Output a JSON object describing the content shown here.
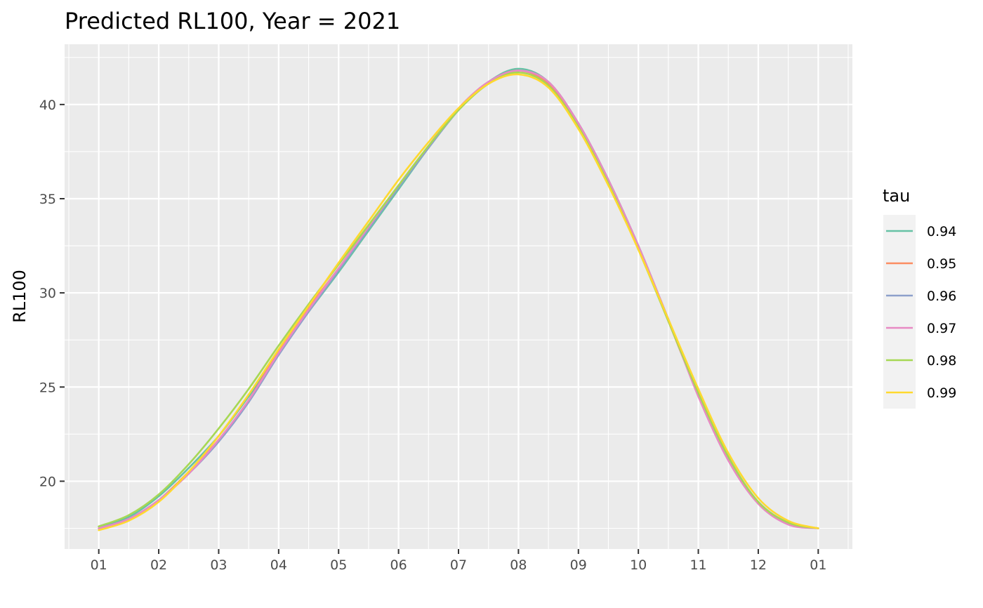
{
  "chart_data": {
    "type": "line",
    "title": "Predicted RL100, Year = 2021",
    "xlabel": "",
    "ylabel": "RL100",
    "x_tick_labels": [
      "01",
      "02",
      "03",
      "04",
      "05",
      "06",
      "07",
      "08",
      "09",
      "10",
      "11",
      "12",
      "01"
    ],
    "y_tick_labels": [
      "20",
      "25",
      "30",
      "35",
      "40"
    ],
    "y_ticks": [
      20,
      25,
      30,
      35,
      40
    ],
    "x_unit": "month",
    "xlim": [
      0.43,
      13.57
    ],
    "ylim": [
      16.4,
      43.2
    ],
    "grid": true,
    "legend_position": "right",
    "legend_title": "tau",
    "x": [
      1,
      1.5,
      2,
      2.5,
      3,
      3.5,
      4,
      4.5,
      5,
      5.5,
      6,
      6.5,
      7,
      7.5,
      8,
      8.5,
      9,
      9.5,
      10,
      10.5,
      11,
      11.5,
      12,
      12.5,
      13
    ],
    "series": [
      {
        "name": "0.94",
        "color": "#66c2a5",
        "values": [
          17.6,
          18.1,
          19.2,
          20.7,
          22.4,
          24.5,
          26.8,
          29.0,
          31.1,
          33.3,
          35.5,
          37.7,
          39.7,
          41.2,
          41.9,
          41.2,
          39.0,
          36.0,
          32.5,
          28.6,
          24.7,
          21.3,
          18.9,
          17.8,
          17.5
        ]
      },
      {
        "name": "0.95",
        "color": "#fc8d62",
        "values": [
          17.5,
          18.0,
          19.0,
          20.5,
          22.2,
          24.3,
          26.9,
          29.2,
          31.3,
          33.5,
          35.7,
          37.8,
          39.8,
          41.2,
          41.8,
          41.1,
          38.9,
          35.9,
          32.4,
          28.5,
          24.6,
          21.2,
          18.9,
          17.8,
          17.5
        ]
      },
      {
        "name": "0.96",
        "color": "#8da0cb",
        "values": [
          17.5,
          18.0,
          19.0,
          20.4,
          22.1,
          24.2,
          26.7,
          29.0,
          31.2,
          33.4,
          35.6,
          37.7,
          39.7,
          41.2,
          41.8,
          41.2,
          39.0,
          36.0,
          32.5,
          28.6,
          24.6,
          21.2,
          18.9,
          17.8,
          17.5
        ]
      },
      {
        "name": "0.97",
        "color": "#e78ac3",
        "values": [
          17.5,
          18.0,
          19.0,
          20.4,
          22.2,
          24.3,
          26.8,
          29.1,
          31.3,
          33.5,
          35.7,
          37.8,
          39.8,
          41.2,
          41.8,
          41.2,
          39.0,
          36.0,
          32.5,
          28.6,
          24.5,
          21.1,
          18.8,
          17.7,
          17.5
        ]
      },
      {
        "name": "0.98",
        "color": "#a6d854",
        "values": [
          17.6,
          18.2,
          19.3,
          20.9,
          22.8,
          24.9,
          27.2,
          29.4,
          31.5,
          33.6,
          35.7,
          37.8,
          39.7,
          41.1,
          41.7,
          41.0,
          38.8,
          35.8,
          32.3,
          28.5,
          24.7,
          21.3,
          18.9,
          17.8,
          17.5
        ]
      },
      {
        "name": "0.99",
        "color": "#ffd92f",
        "values": [
          17.4,
          17.9,
          18.9,
          20.5,
          22.4,
          24.6,
          27.0,
          29.3,
          31.6,
          33.8,
          36.0,
          38.0,
          39.8,
          41.1,
          41.6,
          40.9,
          38.7,
          35.7,
          32.3,
          28.6,
          24.9,
          21.5,
          19.1,
          17.9,
          17.5
        ]
      }
    ]
  }
}
